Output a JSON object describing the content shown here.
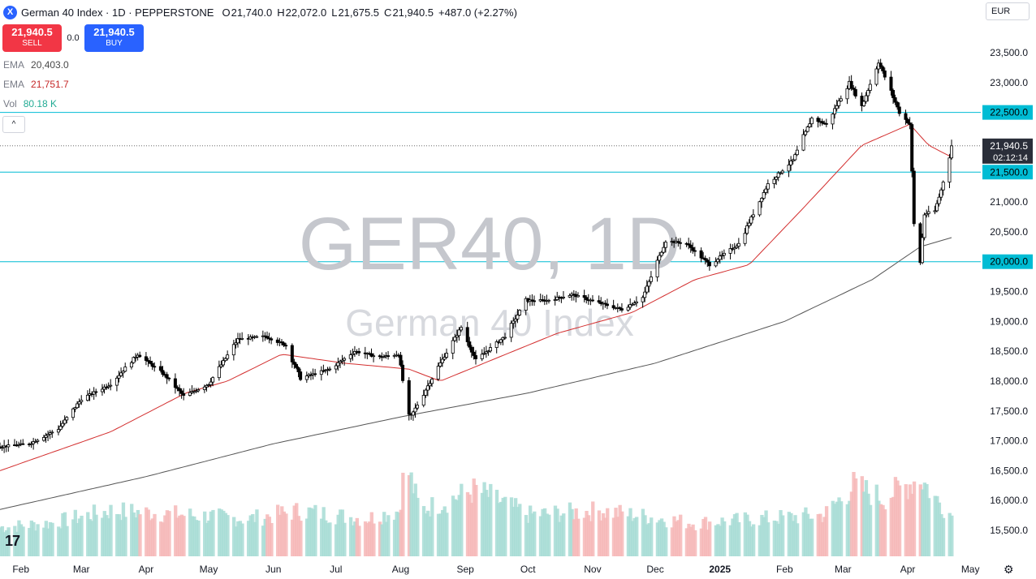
{
  "header": {
    "title": "German 40 Index · 1D · PEPPERSTONE",
    "ohlc": [
      {
        "k": "O",
        "v": "21,740.0"
      },
      {
        "k": "H",
        "v": "22,072.0"
      },
      {
        "k": "L",
        "v": "21,675.5"
      },
      {
        "k": "C",
        "v": "21,940.5"
      }
    ],
    "change": "+487.0 (+2.27%)"
  },
  "trade": {
    "sell_price": "21,940.5",
    "sell_label": "SELL",
    "spread": "0.0",
    "buy_price": "21,940.5",
    "buy_label": "BUY"
  },
  "indicators": [
    {
      "name": "EMA",
      "value": "20,403.0",
      "color": "#4a4a4a"
    },
    {
      "name": "EMA",
      "value": "21,751.7",
      "color": "#c62828"
    },
    {
      "name": "Vol",
      "value": "80.18 K",
      "color": "#22ab94"
    }
  ],
  "currency": "EUR",
  "collapse_symbol": "^",
  "tv_logo": "17",
  "settings_icon": "⚙",
  "colors": {
    "up": "#ffffff",
    "down": "#000000",
    "ema_short": "#d32f2f",
    "ema_long": "#555555",
    "level": "#00bcd4",
    "vol_up": "#a7dcd5",
    "vol_down": "#f6b7b7"
  },
  "chart_data": {
    "type": "candlestick",
    "watermark": {
      "main": "GER40, 1D",
      "sub": "German 40 Index"
    },
    "y_ticks": [
      23500,
      23000,
      22500,
      22000,
      21500,
      21000,
      20500,
      20000,
      19500,
      19000,
      18500,
      18000,
      17500,
      17000,
      16500,
      16000,
      15500
    ],
    "y_tick_labels": [
      "23,500.0",
      "23,000.0",
      "22,500.0",
      "22,000.0",
      "21,500.0",
      "21,000.0",
      "20,500.0",
      "20,000.0",
      "19,500.0",
      "19,000.0",
      "18,500.0",
      "18,000.0",
      "17,500.0",
      "17,000.0",
      "16,500.0",
      "16,000.0",
      "15,500.0"
    ],
    "x_labels": [
      {
        "label": "Feb",
        "date": "2024-02-01"
      },
      {
        "label": "Mar",
        "date": "2024-03-01"
      },
      {
        "label": "Apr",
        "date": "2024-04-01"
      },
      {
        "label": "May",
        "date": "2024-05-01"
      },
      {
        "label": "Jun",
        "date": "2024-06-01"
      },
      {
        "label": "Jul",
        "date": "2024-07-01"
      },
      {
        "label": "Aug",
        "date": "2024-08-01"
      },
      {
        "label": "Sep",
        "date": "2024-09-01"
      },
      {
        "label": "Oct",
        "date": "2024-10-01"
      },
      {
        "label": "Nov",
        "date": "2024-11-01"
      },
      {
        "label": "Dec",
        "date": "2024-12-01"
      },
      {
        "label": "2025",
        "date": "2025-01-01"
      },
      {
        "label": "Feb",
        "date": "2025-02-01"
      },
      {
        "label": "Mar",
        "date": "2025-03-01"
      },
      {
        "label": "Apr",
        "date": "2025-04-01"
      },
      {
        "label": "May",
        "date": "2025-05-01"
      }
    ],
    "date_range": [
      "2024-01-22",
      "2025-05-06"
    ],
    "last_date": "2025-04-22",
    "levels": [
      {
        "value": 22500,
        "label": "22,500.0"
      },
      {
        "value": 21500,
        "label": "21,500.0"
      },
      {
        "value": 20000,
        "label": "20,000.0"
      }
    ],
    "last_price": {
      "value": 21940.5,
      "label": "21,940.5",
      "countdown": "02:12:14"
    },
    "close_path": [
      [
        "2024-01-22",
        16900
      ],
      [
        "2024-02-05",
        16950
      ],
      [
        "2024-02-19",
        17200
      ],
      [
        "2024-03-01",
        17700
      ],
      [
        "2024-03-15",
        17950
      ],
      [
        "2024-03-28",
        18450
      ],
      [
        "2024-04-10",
        18100
      ],
      [
        "2024-04-19",
        17750
      ],
      [
        "2024-05-01",
        17950
      ],
      [
        "2024-05-15",
        18700
      ],
      [
        "2024-05-28",
        18750
      ],
      [
        "2024-06-07",
        18600
      ],
      [
        "2024-06-14",
        18050
      ],
      [
        "2024-06-28",
        18200
      ],
      [
        "2024-07-10",
        18500
      ],
      [
        "2024-07-22",
        18400
      ],
      [
        "2024-07-31",
        18450
      ],
      [
        "2024-08-05",
        17350
      ],
      [
        "2024-08-20",
        18300
      ],
      [
        "2024-08-30",
        18900
      ],
      [
        "2024-09-06",
        18350
      ],
      [
        "2024-09-20",
        18750
      ],
      [
        "2024-09-30",
        19350
      ],
      [
        "2024-10-10",
        19350
      ],
      [
        "2024-10-22",
        19450
      ],
      [
        "2024-11-05",
        19300
      ],
      [
        "2024-11-15",
        19200
      ],
      [
        "2024-11-25",
        19400
      ],
      [
        "2024-12-06",
        20350
      ],
      [
        "2024-12-16",
        20300
      ],
      [
        "2024-12-27",
        19950
      ],
      [
        "2025-01-10",
        20300
      ],
      [
        "2025-01-24",
        21300
      ],
      [
        "2025-02-05",
        21700
      ],
      [
        "2025-02-14",
        22400
      ],
      [
        "2025-02-21",
        22300
      ],
      [
        "2025-03-04",
        23000
      ],
      [
        "2025-03-10",
        22600
      ],
      [
        "2025-03-18",
        23350
      ],
      [
        "2025-03-28",
        22500
      ],
      [
        "2025-04-02",
        22300
      ],
      [
        "2025-04-04",
        20600
      ],
      [
        "2025-04-07",
        20000
      ],
      [
        "2025-04-09",
        20800
      ],
      [
        "2025-04-14",
        20850
      ],
      [
        "2025-04-17",
        21200
      ],
      [
        "2025-04-22",
        21940
      ]
    ],
    "ema_short": [
      [
        "2024-01-22",
        16500
      ],
      [
        "2024-03-15",
        17150
      ],
      [
        "2024-04-20",
        17800
      ],
      [
        "2024-05-10",
        18000
      ],
      [
        "2024-06-05",
        18450
      ],
      [
        "2024-07-05",
        18300
      ],
      [
        "2024-08-05",
        18200
      ],
      [
        "2024-08-20",
        18000
      ],
      [
        "2024-09-10",
        18300
      ],
      [
        "2024-10-15",
        18800
      ],
      [
        "2024-11-20",
        19150
      ],
      [
        "2024-12-20",
        19700
      ],
      [
        "2025-01-15",
        19950
      ],
      [
        "2025-02-10",
        20900
      ],
      [
        "2025-03-10",
        21950
      ],
      [
        "2025-04-02",
        22300
      ],
      [
        "2025-04-11",
        21950
      ],
      [
        "2025-04-22",
        21751.7
      ]
    ],
    "ema_long": [
      [
        "2024-01-22",
        15850
      ],
      [
        "2024-04-01",
        16400
      ],
      [
        "2024-06-01",
        16950
      ],
      [
        "2024-08-01",
        17400
      ],
      [
        "2024-10-01",
        17800
      ],
      [
        "2024-12-01",
        18300
      ],
      [
        "2025-02-01",
        19000
      ],
      [
        "2025-03-15",
        19700
      ],
      [
        "2025-04-07",
        20250
      ],
      [
        "2025-04-22",
        20403
      ]
    ],
    "volume_path": [
      [
        "2024-01-22",
        0.35
      ],
      [
        "2024-02-15",
        0.4
      ],
      [
        "2024-03-15",
        0.55
      ],
      [
        "2024-04-20",
        0.5
      ],
      [
        "2024-05-20",
        0.45
      ],
      [
        "2024-06-14",
        0.55
      ],
      [
        "2024-07-15",
        0.45
      ],
      [
        "2024-07-31",
        0.55
      ],
      [
        "2024-08-02",
        0.9
      ],
      [
        "2024-08-05",
        1.0
      ],
      [
        "2024-08-10",
        0.55
      ],
      [
        "2024-09-06",
        0.8
      ],
      [
        "2024-10-01",
        0.5
      ],
      [
        "2024-11-05",
        0.55
      ],
      [
        "2024-12-20",
        0.4
      ],
      [
        "2025-01-20",
        0.45
      ],
      [
        "2025-02-20",
        0.5
      ],
      [
        "2025-03-06",
        0.85
      ],
      [
        "2025-03-20",
        0.7
      ],
      [
        "2025-04-07",
        0.95
      ],
      [
        "2025-04-14",
        0.7
      ],
      [
        "2025-04-22",
        0.5
      ]
    ]
  }
}
